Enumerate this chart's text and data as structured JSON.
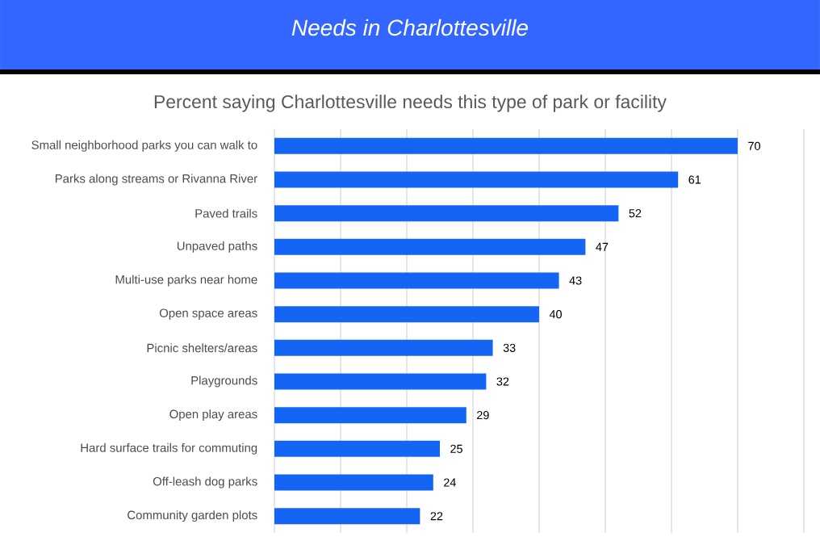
{
  "chart_data": {
    "type": "bar",
    "orientation": "horizontal",
    "title": "Needs in Charlottesville",
    "subtitle": "Percent saying Charlottesville needs this type of park or facility",
    "categories": [
      "Small neighborhood parks you can walk to",
      "Parks along streams or Rivanna River",
      "Paved trails",
      "Unpaved paths",
      "Multi-use parks near home",
      "Open space areas",
      "Picnic shelters/areas",
      "Playgrounds",
      "Open play areas",
      "Hard surface trails for commuting",
      "Off-leash dog parks",
      "Community garden plots"
    ],
    "values": [
      70,
      61,
      52,
      47,
      43,
      40,
      33,
      32,
      29,
      25,
      24,
      22
    ],
    "color": "#1565f5",
    "xlim": [
      0,
      80
    ],
    "xticks": [
      {
        "value": 0,
        "label": null
      },
      {
        "value": 10,
        "label": null
      },
      {
        "value": 20,
        "label": null
      },
      {
        "value": 30,
        "label": null
      },
      {
        "value": 40,
        "label": null
      },
      {
        "value": 50,
        "label": null
      },
      {
        "value": 60,
        "label": null
      },
      {
        "value": 70,
        "label": null
      },
      {
        "value": 80,
        "label": null
      }
    ],
    "grid": "x",
    "tick_labels": "y",
    "data_labels": true
  }
}
